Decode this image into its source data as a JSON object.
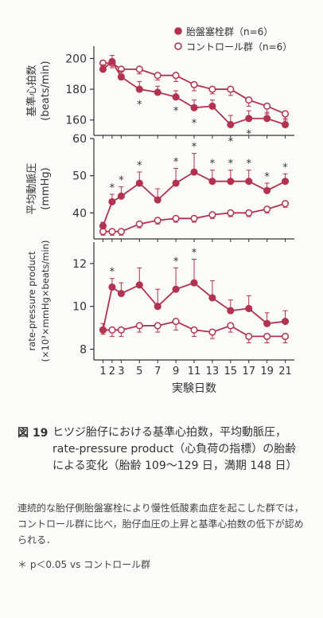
{
  "chart_data": {
    "type": "line",
    "legend": {
      "position": "top-right",
      "entries": [
        {
          "label": "胎盤塞栓群（n=6）",
          "marker": "filled-circle",
          "color": "#b2324f"
        },
        {
          "label": "コントロール群（n=6）",
          "marker": "open-circle",
          "color": "#b2324f"
        }
      ]
    },
    "xlabel": "実験日数",
    "x": [
      1,
      2,
      3,
      5,
      7,
      9,
      11,
      13,
      15,
      17,
      19,
      21
    ],
    "xticks": [
      "1",
      "2",
      "3",
      "5",
      "7",
      "9",
      "11",
      "13",
      "15",
      "17",
      "19",
      "21"
    ],
    "panels": [
      {
        "ylabel_lines": [
          "基準心拍数",
          "(beats/min)"
        ],
        "ylim": [
          150,
          208
        ],
        "yticks": [
          160,
          180,
          200
        ],
        "series": [
          {
            "name": "胎盤塞栓群",
            "style": "filled",
            "values": [
              193,
              198,
              188,
              180,
              178,
              175,
              168,
              169,
              157,
              161,
              161,
              157
            ],
            "errors": [
              3,
              4,
              4,
              5,
              4,
              4,
              5,
              4,
              6,
              5,
              4,
              4
            ]
          },
          {
            "name": "コントロール群",
            "style": "open",
            "values": [
              197,
              197,
              193,
              193,
              189,
              189,
              183,
              180,
              180,
              173,
              169,
              164
            ],
            "errors": [
              3,
              3,
              3,
              3,
              3,
              4,
              4,
              3,
              4,
              4,
              5,
              4
            ]
          }
        ],
        "significant_x": [
          5,
          9,
          11,
          15,
          17
        ]
      },
      {
        "ylabel_lines": [
          "平均動脈圧",
          "(mmHg)"
        ],
        "ylim": [
          33,
          60
        ],
        "yticks": [
          40,
          50,
          60
        ],
        "series": [
          {
            "name": "胎盤塞栓群",
            "style": "filled",
            "values": [
              36.5,
              43,
              44.5,
              48,
              43.5,
              48,
              51,
              48.5,
              48.5,
              48.5,
              46,
              48.5
            ],
            "errors": [
              1,
              2,
              2.5,
              3,
              3,
              4,
              5,
              3,
              3,
              3,
              2,
              2
            ]
          },
          {
            "name": "コントロール群",
            "style": "open",
            "values": [
              35,
              35,
              35,
              37,
              38,
              38.5,
              38.5,
              39.5,
              40,
              40,
              41,
              42.5
            ],
            "errors": [
              1,
              1,
              1,
              1,
              1,
              1,
              1,
              1,
              1,
              1,
              1,
              1
            ]
          }
        ],
        "significant_x": [
          2,
          3,
          5,
          9,
          11,
          13,
          15,
          17,
          19,
          21
        ]
      },
      {
        "ylabel_lines": [
          "rate-pressure product",
          "(×10³×mmHg×beats/min)"
        ],
        "ylim": [
          7.5,
          13
        ],
        "yticks": [
          8,
          10,
          12
        ],
        "series": [
          {
            "name": "胎盤塞栓群",
            "style": "filled",
            "values": [
              8.9,
              10.9,
              10.6,
              11,
              10,
              10.8,
              11.1,
              10.4,
              9.8,
              9.9,
              9.2,
              9.3
            ],
            "errors": [
              0.3,
              0.4,
              0.5,
              0.8,
              0.8,
              1,
              1.1,
              0.8,
              0.5,
              0.6,
              0.5,
              0.5
            ]
          },
          {
            "name": "コントロール群",
            "style": "open",
            "values": [
              8.9,
              8.9,
              8.9,
              9.1,
              9.1,
              9.3,
              8.9,
              8.8,
              9.1,
              8.6,
              8.6,
              8.6
            ],
            "errors": [
              0.2,
              0.3,
              0.3,
              0.3,
              0.3,
              0.4,
              0.3,
              0.3,
              0.3,
              0.3,
              0.3,
              0.3
            ]
          }
        ],
        "significant_x": [
          2,
          9,
          11
        ]
      }
    ],
    "colors": {
      "series": "#b2324f",
      "axis": "#333333"
    }
  },
  "caption": {
    "figure_number": "図 19",
    "title": "ヒツジ胎仔における基準心拍数，平均動脈圧，rate-pressure product（心負荷の指標）の胎齢による変化（胎齢 109～129 日，満期 148 日）",
    "body": "連続的な胎仔側胎盤塞栓により慢性低酸素血症を起こした群では，コントロール群に比べ，胎仔血圧の上昇と基準心拍数の低下が認められる．",
    "note": "＊ p＜0.05 vs コントロール群"
  }
}
